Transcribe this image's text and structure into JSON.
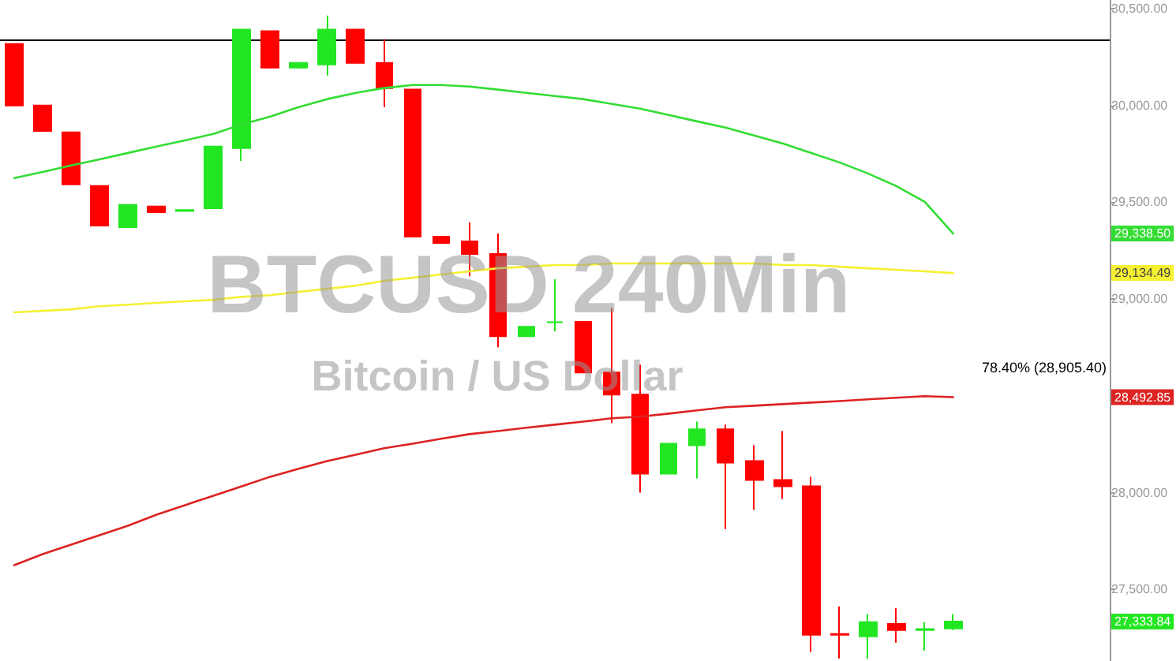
{
  "chart_data": {
    "type": "candlestick",
    "title": "BTCUSD 240Min",
    "subtitle": "Bitcoin / US Dollar",
    "categories": [
      null,
      null,
      null,
      null,
      null,
      null,
      null,
      null,
      null,
      null,
      null,
      null,
      null,
      null,
      null,
      null,
      null,
      null,
      null,
      null,
      null,
      null,
      null,
      null,
      null,
      null,
      null,
      null,
      null,
      null,
      null,
      null,
      null,
      null,
      null,
      null,
      null,
      null,
      null
    ],
    "ohlc": [
      [
        30318,
        30318,
        30000,
        30000
      ],
      [
        30000,
        30000,
        29869,
        29869
      ],
      [
        29861,
        29861,
        29592,
        29592
      ],
      [
        29584,
        29584,
        29380,
        29380
      ],
      [
        29371,
        29486,
        29371,
        29486
      ],
      [
        29478,
        29478,
        29449,
        29449
      ],
      [
        29455,
        29460,
        29455,
        29460
      ],
      [
        29469,
        29788,
        29469,
        29788
      ],
      [
        29780,
        30392,
        29714,
        30392
      ],
      [
        30384,
        30384,
        30196,
        30196
      ],
      [
        30196,
        30220,
        30196,
        30220
      ],
      [
        30212,
        30465,
        30155,
        30392
      ],
      [
        30392,
        30392,
        30220,
        30220
      ],
      [
        30220,
        30343,
        29992,
        30090
      ],
      [
        30082,
        30082,
        29322,
        29322
      ],
      [
        29322,
        29322,
        29290,
        29290
      ],
      [
        29298,
        29396,
        29118,
        29233
      ],
      [
        29233,
        29339,
        28751,
        28808
      ],
      [
        28808,
        28857,
        28808,
        28857
      ],
      [
        28880,
        29102,
        28833,
        28880
      ],
      [
        28882,
        28882,
        28620,
        28620
      ],
      [
        28620,
        28955,
        28359,
        28506
      ],
      [
        28506,
        28661,
        28000,
        28098
      ],
      [
        28098,
        28253,
        28098,
        28253
      ],
      [
        28245,
        28367,
        28073,
        28327
      ],
      [
        28327,
        28351,
        27812,
        28155
      ],
      [
        28163,
        28245,
        27910,
        28065
      ],
      [
        28065,
        28318,
        27967,
        28033
      ],
      [
        28033,
        28082,
        27176,
        27265
      ],
      [
        27270,
        27412,
        27143,
        27265
      ],
      [
        27257,
        27372,
        27143,
        27331
      ],
      [
        27322,
        27404,
        27225,
        27290
      ],
      [
        27290,
        27331,
        27184,
        27295
      ],
      [
        27298,
        27372,
        27290,
        27333.84
      ],
      null,
      null,
      null,
      null,
      null
    ],
    "series": [
      {
        "type": "line",
        "color": "#33dd33",
        "values": [
          29625,
          29657,
          29690,
          29722,
          29755,
          29788,
          29820,
          29853,
          29902,
          29943,
          29992,
          30033,
          30065,
          30090,
          30106,
          30106,
          30098,
          30082,
          30065,
          30049,
          30033,
          30008,
          29984,
          29951,
          29918,
          29886,
          29845,
          29804,
          29755,
          29706,
          29649,
          29584,
          29502,
          29338.5,
          null,
          null,
          null,
          null,
          null
        ]
      },
      {
        "type": "line",
        "color": "#f5f032",
        "values": [
          28931,
          28939,
          28947,
          28963,
          28971,
          28980,
          28988,
          28996,
          29012,
          29020,
          29037,
          29053,
          29069,
          29094,
          29110,
          29127,
          29143,
          29159,
          29167,
          29176,
          29176,
          29184,
          29184,
          29184,
          29184,
          29184,
          29184,
          29176,
          29176,
          29167,
          29159,
          29151,
          29143,
          29134.49,
          null,
          null,
          null,
          null,
          null
        ]
      },
      {
        "type": "line",
        "color": "#dd2222",
        "values": [
          27625,
          27682,
          27731,
          27780,
          27829,
          27886,
          27935,
          27984,
          28033,
          28082,
          28123,
          28163,
          28196,
          28229,
          28253,
          28278,
          28302,
          28318,
          28335,
          28351,
          28367,
          28384,
          28392,
          28408,
          28425,
          28441,
          28449,
          28457,
          28465,
          28473,
          28482,
          28490,
          28498,
          28492.85,
          null,
          null,
          null,
          null,
          null
        ]
      }
    ],
    "ylim": [
      27130,
      30545
    ],
    "yticks": [
      {
        "value": 27500,
        "label": "27,500.00"
      },
      {
        "value": 28000,
        "label": "28,000.00"
      },
      {
        "value": 28500,
        "label": null
      },
      {
        "value": 29000,
        "label": "29,000.00"
      },
      {
        "value": 29500,
        "label": "29,500.00"
      },
      {
        "value": 30000,
        "label": "30,000.00"
      },
      {
        "value": 30500,
        "label": "30,500.00"
      }
    ],
    "ref_lines": [
      {
        "axis": "y",
        "value": 30343,
        "color": "#000000"
      }
    ],
    "annotations": [
      "78.40% (28,905.40)",
      "29,338.50",
      "29,134.49",
      "28,492.85",
      "27,333.84"
    ],
    "line_style": "solid",
    "grid": false
  }
}
